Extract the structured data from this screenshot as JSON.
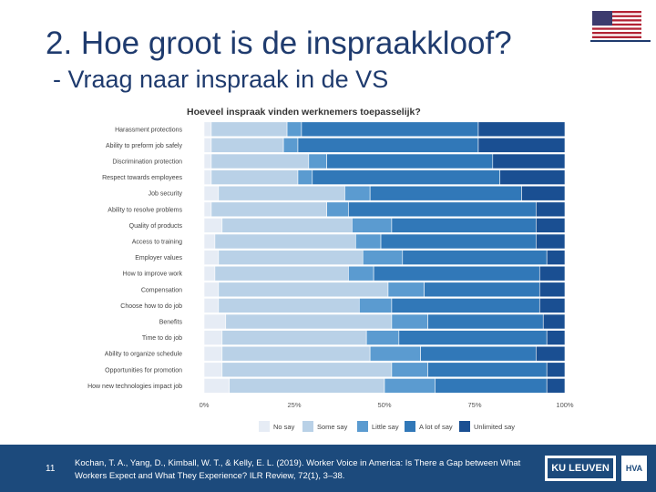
{
  "slide": {
    "title": "2. Hoe groot is de inspraakkloof?",
    "subtitle": "- Vraag naar inspraak in de VS",
    "page_number": "11",
    "reference": "Kochan, T. A., Yang, D., Kimball, W. T., & Kelly, E. L. (2019). Worker Voice in America: Is There a Gap between What Workers Expect and What They Experience? ILR Review, 72(1), 3–38.",
    "logo_ku": "KU LEUVEN",
    "logo_hva": "HVA",
    "flag_icon": "us-flag-icon"
  },
  "chart_data": {
    "type": "bar",
    "orientation": "horizontal",
    "stacked": true,
    "title": "Hoeveel inspraak vinden werknemers toepasselijk?",
    "categories": [
      "Harassment protections",
      "Ability to preform job safely",
      "Discrimination protection",
      "Respect towards employees",
      "Job security",
      "Ability to resolve problems",
      "Quality of products",
      "Access to training",
      "Employer values",
      "How to improve work",
      "Compensation",
      "Choose how to do job",
      "Benefits",
      "Time to do job",
      "Ability to organize schedule",
      "Opportunities for promotion",
      "How new technologies impact job"
    ],
    "series": [
      {
        "name": "No say",
        "color": "#e6ecf5",
        "values": [
          2,
          2,
          2,
          2,
          4,
          2,
          5,
          3,
          4,
          3,
          4,
          4,
          6,
          5,
          5,
          5,
          7
        ]
      },
      {
        "name": "Some say",
        "color": "#b9d1e7",
        "values": [
          21,
          20,
          27,
          24,
          35,
          32,
          36,
          39,
          40,
          37,
          47,
          39,
          46,
          40,
          41,
          47,
          43
        ]
      },
      {
        "name": "Little say",
        "color": "#5b9bd0",
        "values": [
          4,
          4,
          5,
          4,
          7,
          6,
          11,
          7,
          11,
          7,
          10,
          9,
          10,
          9,
          14,
          10,
          14
        ]
      },
      {
        "name": "A lot of say",
        "color": "#3178b8",
        "values": [
          49,
          50,
          46,
          52,
          42,
          52,
          40,
          43,
          40,
          46,
          32,
          41,
          32,
          41,
          32,
          33,
          31
        ]
      },
      {
        "name": "Unlimited say",
        "color": "#1a4f92",
        "values": [
          24,
          24,
          20,
          18,
          12,
          8,
          8,
          8,
          5,
          7,
          7,
          7,
          6,
          5,
          8,
          5,
          5
        ]
      }
    ],
    "xticks": [
      "0%",
      "25%",
      "50%",
      "75%",
      "100%"
    ],
    "xlim": [
      0,
      100
    ],
    "xlabel": "",
    "ylabel": "",
    "grid": false,
    "legend": "bottom"
  }
}
